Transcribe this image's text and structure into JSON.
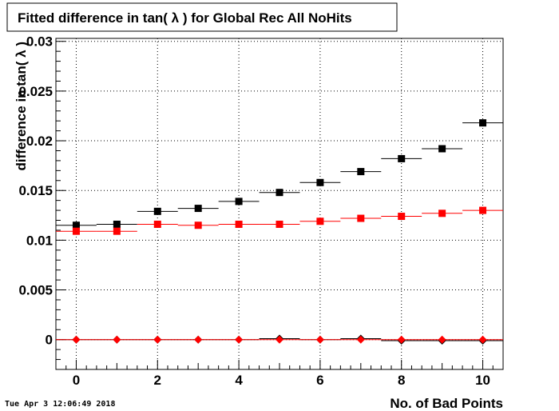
{
  "chart_data": {
    "type": "scatter",
    "title": "Fitted difference in tan( λ ) for Global Rec All NoHits",
    "xlabel": "No. of Bad Points",
    "ylabel": "difference in tan( λ )",
    "xlim": [
      -0.5,
      10.5
    ],
    "ylim": [
      -0.003,
      0.0303
    ],
    "x": [
      0,
      1,
      2,
      3,
      4,
      5,
      6,
      7,
      8,
      9,
      10
    ],
    "x_tick_labels": [
      "0",
      "2",
      "4",
      "6",
      "8",
      "10"
    ],
    "y_tick_labels": [
      "0",
      "0.005",
      "0.01",
      "0.015",
      "0.02",
      "0.025",
      "0.03"
    ],
    "grid": true,
    "series": [
      {
        "color": "#000000",
        "marker": "square",
        "values": [
          0.0115,
          0.0116,
          0.0129,
          0.0132,
          0.0139,
          0.0148,
          0.0158,
          0.0169,
          0.0182,
          0.0192,
          0.0218
        ]
      },
      {
        "color": "#ff0000",
        "marker": "square",
        "values": [
          0.0109,
          0.0109,
          0.0116,
          0.0115,
          0.0116,
          0.0116,
          0.0119,
          0.0122,
          0.0124,
          0.0127,
          0.013
        ]
      },
      {
        "color": "#000000",
        "marker": "diamond",
        "values": [
          0.0,
          0.0,
          0.0,
          0.0,
          0.0,
          0.0001,
          0.0,
          0.0001,
          -0.0001,
          -0.0001,
          -0.0001
        ]
      },
      {
        "color": "#ff0000",
        "marker": "diamond",
        "values": [
          0.0,
          0.0,
          0.0,
          0.0,
          0.0,
          0.0,
          0.0,
          0.0,
          0.0,
          0.0,
          0.0
        ]
      }
    ]
  },
  "footer": {
    "timestamp": "Tue Apr  3 12:06:49 2018"
  }
}
